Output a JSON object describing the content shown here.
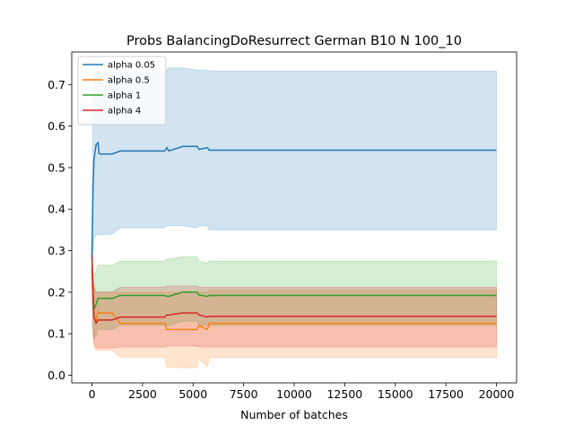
{
  "chart_data": {
    "type": "line",
    "title": "Probs BalancingDoResurrect German B10 N 100_10",
    "xlabel": "Number of batches",
    "ylabel": "",
    "xlim": [
      -1000,
      21000
    ],
    "ylim": [
      -0.0185,
      0.7785
    ],
    "xticks": [
      0,
      2500,
      5000,
      7500,
      10000,
      12500,
      15000,
      17500,
      20000
    ],
    "xtick_labels": [
      "0",
      "2500",
      "5000",
      "7500",
      "10000",
      "12500",
      "15000",
      "17500",
      "20000"
    ],
    "yticks": [
      0.0,
      0.1,
      0.2,
      0.3,
      0.4,
      0.5,
      0.6,
      0.7
    ],
    "ytick_labels": [
      "0.0",
      "0.1",
      "0.2",
      "0.3",
      "0.4",
      "0.5",
      "0.6",
      "0.7"
    ],
    "grid": false,
    "legend_position": "top-left",
    "series": [
      {
        "name": "alpha 0.05",
        "color": "#1f77b4",
        "x": [
          0,
          50,
          100,
          200,
          300,
          350,
          400,
          1000,
          1400,
          3600,
          3700,
          3800,
          4500,
          5200,
          5300,
          5700,
          5800,
          20000
        ],
        "y": [
          0.28,
          0.45,
          0.52,
          0.555,
          0.56,
          0.535,
          0.533,
          0.533,
          0.54,
          0.54,
          0.548,
          0.54,
          0.551,
          0.551,
          0.544,
          0.548,
          0.542,
          0.542
        ],
        "lower": [
          0.25,
          0.3,
          0.33,
          0.338,
          0.338,
          0.338,
          0.338,
          0.34,
          0.355,
          0.355,
          0.36,
          0.36,
          0.36,
          0.355,
          0.36,
          0.36,
          0.35,
          0.35
        ],
        "upper": [
          0.3,
          0.62,
          0.73,
          0.735,
          0.735,
          0.73,
          0.73,
          0.73,
          0.73,
          0.73,
          0.735,
          0.74,
          0.74,
          0.735,
          0.735,
          0.735,
          0.733,
          0.733
        ]
      },
      {
        "name": "alpha 0.5",
        "color": "#ff7f0e",
        "x": [
          0,
          50,
          100,
          200,
          300,
          400,
          1000,
          1400,
          3600,
          3700,
          3800,
          4500,
          5200,
          5300,
          5700,
          5800,
          20000
        ],
        "y": [
          0.25,
          0.2,
          0.14,
          0.13,
          0.152,
          0.15,
          0.15,
          0.125,
          0.125,
          0.11,
          0.11,
          0.11,
          0.11,
          0.12,
          0.11,
          0.125,
          0.125
        ],
        "lower": [
          0.22,
          0.1,
          0.07,
          0.06,
          0.06,
          0.06,
          0.06,
          0.043,
          0.043,
          0.02,
          0.02,
          0.018,
          0.018,
          0.04,
          0.02,
          0.042,
          0.042
        ],
        "upper": [
          0.27,
          0.23,
          0.22,
          0.2,
          0.2,
          0.2,
          0.2,
          0.2,
          0.2,
          0.2,
          0.2,
          0.2,
          0.2,
          0.2,
          0.2,
          0.205,
          0.205
        ]
      },
      {
        "name": "alpha 1",
        "color": "#2ca02c",
        "x": [
          0,
          50,
          100,
          200,
          300,
          400,
          1000,
          1400,
          3600,
          3700,
          3800,
          4500,
          5200,
          5300,
          5700,
          5800,
          20000
        ],
        "y": [
          0.26,
          0.2,
          0.16,
          0.17,
          0.185,
          0.185,
          0.185,
          0.192,
          0.192,
          0.19,
          0.19,
          0.2,
          0.2,
          0.193,
          0.19,
          0.192,
          0.192
        ],
        "lower": [
          0.23,
          0.12,
          0.09,
          0.095,
          0.11,
          0.11,
          0.11,
          0.12,
          0.12,
          0.12,
          0.12,
          0.13,
          0.13,
          0.12,
          0.12,
          0.12,
          0.12
        ],
        "upper": [
          0.28,
          0.25,
          0.24,
          0.25,
          0.265,
          0.265,
          0.265,
          0.275,
          0.275,
          0.28,
          0.28,
          0.285,
          0.285,
          0.275,
          0.27,
          0.275,
          0.275
        ]
      },
      {
        "name": "alpha 4",
        "color": "#d62728",
        "x": [
          0,
          50,
          100,
          200,
          300,
          400,
          1000,
          1400,
          3600,
          3700,
          3800,
          4500,
          5200,
          5300,
          5700,
          5800,
          20000
        ],
        "y": [
          0.29,
          0.2,
          0.14,
          0.125,
          0.133,
          0.133,
          0.133,
          0.14,
          0.14,
          0.145,
          0.145,
          0.15,
          0.15,
          0.145,
          0.14,
          0.142,
          0.142
        ],
        "lower": [
          0.26,
          0.1,
          0.08,
          0.065,
          0.065,
          0.065,
          0.065,
          0.068,
          0.068,
          0.07,
          0.07,
          0.07,
          0.07,
          0.068,
          0.068,
          0.068,
          0.068
        ],
        "upper": [
          0.3,
          0.24,
          0.21,
          0.2,
          0.2,
          0.2,
          0.2,
          0.212,
          0.212,
          0.215,
          0.215,
          0.215,
          0.215,
          0.212,
          0.212,
          0.212,
          0.212
        ]
      }
    ]
  }
}
